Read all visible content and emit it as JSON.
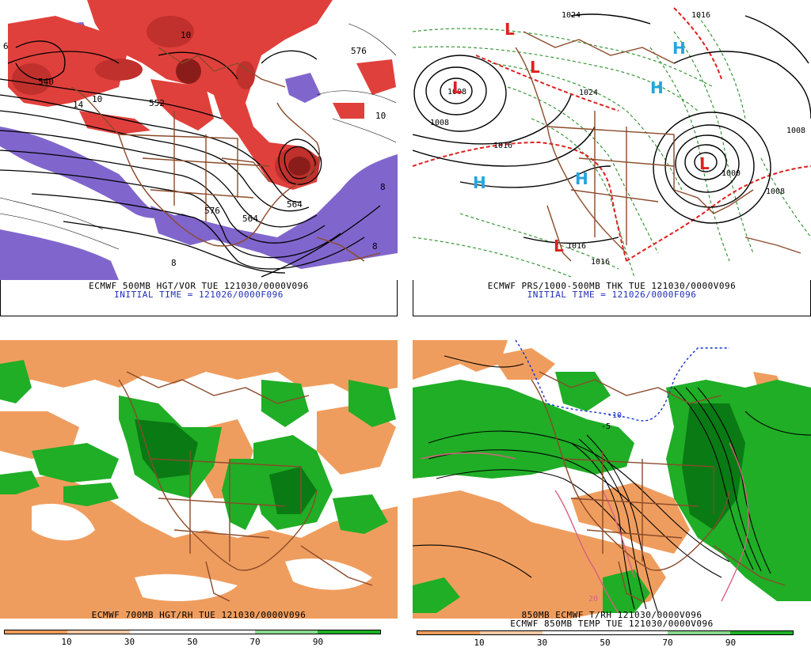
{
  "panels": {
    "tl": {
      "title": "ECMWF 500MB HGT/VOR TUE 121030/0000V096",
      "subtitle": "INITIAL TIME = 121026/0000F096",
      "contour_labels": [
        "540",
        "552",
        "576",
        "576",
        "564",
        "564",
        "14",
        "10",
        "10",
        "8",
        "8",
        "8",
        "6",
        "10"
      ]
    },
    "tr": {
      "title": "ECMWF PRS/1000-500MB THK TUE 121030/0000V096",
      "subtitle": "INITIAL TIME = 121026/0000F096",
      "pressure_labels": [
        "1008",
        "1016",
        "1024",
        "1016",
        "1016",
        "1008",
        "1000",
        "1008",
        "1008",
        "1024",
        "1016"
      ],
      "highs": [
        "H",
        "H",
        "H",
        "H"
      ],
      "lows": [
        "L",
        "L",
        "L",
        "L",
        "L"
      ]
    },
    "bl": {
      "title": "ECMWF 700MB HGT/RH TUE 121030/0000V096",
      "scale_ticks": [
        "10",
        "30",
        "50",
        "70",
        "90"
      ]
    },
    "br": {
      "title": "850MB ECMWF T/RH 121030/0000V096",
      "subtitle": "ECMWF 850MB TEMP TUE 121030/0000V096",
      "contour_labels": [
        "20",
        "-10",
        "-5"
      ],
      "scale_ticks": [
        "10",
        "30",
        "50",
        "70",
        "90"
      ]
    }
  },
  "colors": {
    "vorticity_red": "#e0403c",
    "vorticity_dark": "#8a1d1a",
    "negative_vor": "#8066cc",
    "dry_orange": "#ef9d5e",
    "moist_green": "#1fae26",
    "moist_dark": "#0a7a14",
    "map_lines": "#8b4a2a",
    "high_blue": "#23a5e0",
    "low_red": "#e02020",
    "thickness_green": "#2a8f2a",
    "freezing_blue": "#1030d0"
  }
}
